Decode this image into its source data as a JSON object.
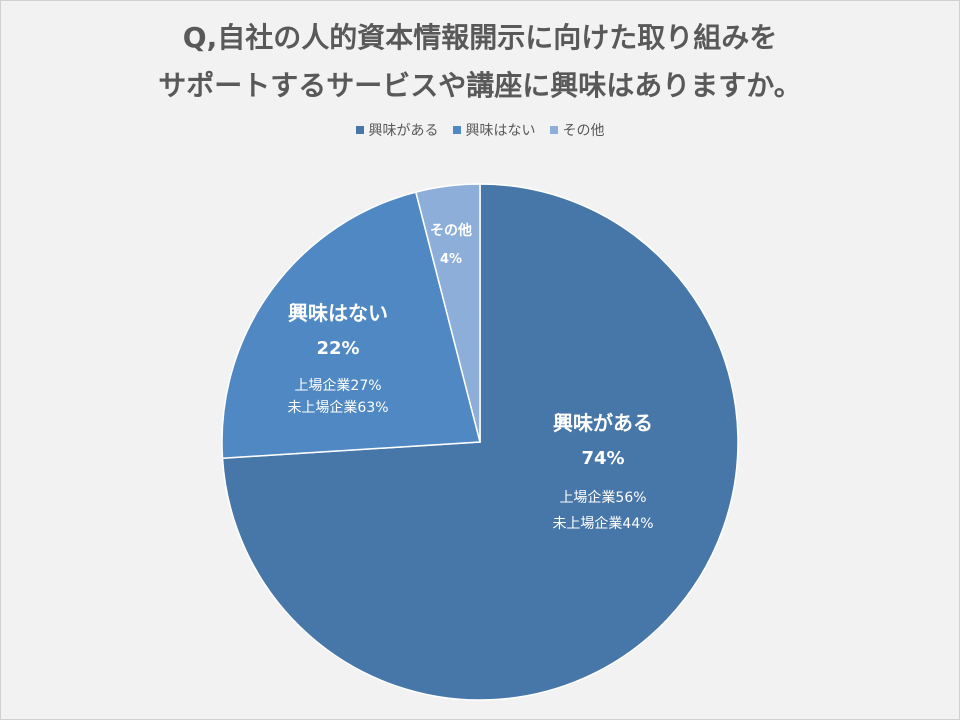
{
  "chart_data": {
    "type": "pie",
    "title_lines": [
      "Q,自社の人的資本情報開示に向けた取り組みを",
      "サポートするサービスや講座に興味はありますか。"
    ],
    "categories": [
      "興味がある",
      "興味はない",
      "その他"
    ],
    "values": [
      74,
      22,
      4
    ],
    "value_labels": [
      "74%",
      "22%",
      "4%"
    ],
    "colors": [
      "#4776a8",
      "#4f88c2",
      "#8daed9"
    ],
    "breakdowns": [
      [
        "上場企業56%",
        "未上場企業44%"
      ],
      [
        "上場企業27%",
        "未上場企業63%"
      ],
      []
    ],
    "legend_position": "top"
  }
}
